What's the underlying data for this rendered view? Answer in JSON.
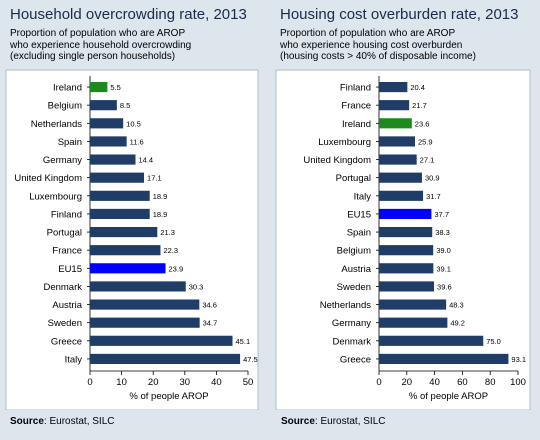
{
  "chart_data": [
    {
      "type": "bar",
      "orientation": "horizontal",
      "title": "Household overcrowding rate, 2013",
      "subtitle": "Proportion of population who are AROP\nwho experience household overcrowding\n(excluding single person households)",
      "categories": [
        "Ireland",
        "Belgium",
        "Netherlands",
        "Spain",
        "Germany",
        "United Kingdom",
        "Luxembourg",
        "Finland",
        "Portugal",
        "France",
        "EU15",
        "Denmark",
        "Austria",
        "Sweden",
        "Greece",
        "Italy"
      ],
      "values": [
        5.5,
        8.5,
        10.5,
        11.6,
        14.4,
        17.1,
        18.9,
        18.9,
        21.3,
        22.3,
        23.9,
        30.3,
        34.6,
        34.7,
        45.1,
        47.5
      ],
      "value_labels": [
        "5.5",
        "8.5",
        "10.5",
        "11.6",
        "14.4",
        "17.1",
        "18.9",
        "18.9",
        "21.3",
        "22.3",
        "23.9",
        "30.3",
        "34.6",
        "34.7",
        "45.1",
        "47.5"
      ],
      "xlabel": "% of people AROP",
      "xlim": [
        0,
        50
      ],
      "xticks": [
        0,
        10,
        20,
        30,
        40,
        50
      ],
      "grid": false,
      "colors": {
        "default": "#1f3d66",
        "highlight_ireland": "#1e8a1e",
        "highlight_eu15": "#0000ff"
      },
      "highlight": {
        "Ireland": "#1e8a1e",
        "EU15": "#0000ff"
      }
    },
    {
      "type": "bar",
      "orientation": "horizontal",
      "title": "Housing cost overburden rate, 2013",
      "subtitle": "Proportion of population who are AROP\nwho experience housing cost overburden\n(housing costs > 40% of disposable income)",
      "categories": [
        "Finland",
        "France",
        "Ireland",
        "Luxembourg",
        "United Kingdom",
        "Portugal",
        "Italy",
        "EU15",
        "Spain",
        "Belgium",
        "Austria",
        "Sweden",
        "Netherlands",
        "Germany",
        "Denmark",
        "Greece"
      ],
      "values": [
        20.4,
        21.7,
        23.6,
        25.9,
        27.1,
        30.9,
        31.7,
        37.7,
        38.3,
        39.0,
        39.1,
        39.6,
        48.3,
        49.2,
        75.0,
        93.1
      ],
      "value_labels": [
        "20.4",
        "21.7",
        "23.6",
        "25.9",
        "27.1",
        "30.9",
        "31.7",
        "37.7",
        "38.3",
        "39.0",
        "39.1",
        "39.6",
        "48.3",
        "49.2",
        "75.0",
        "93.1"
      ],
      "xlabel": "% of people AROP",
      "xlim": [
        0,
        100
      ],
      "xticks": [
        0,
        20,
        40,
        60,
        80,
        100
      ],
      "grid": false,
      "colors": {
        "default": "#1f3d66",
        "highlight_ireland": "#1e8a1e",
        "highlight_eu15": "#0000ff"
      },
      "highlight": {
        "Ireland": "#1e8a1e",
        "EU15": "#0000ff"
      }
    }
  ],
  "sources": [
    {
      "label": "Source",
      "text": ": Eurostat, SILC"
    },
    {
      "label": "Source",
      "text": ": Eurostat, SILC"
    }
  ]
}
